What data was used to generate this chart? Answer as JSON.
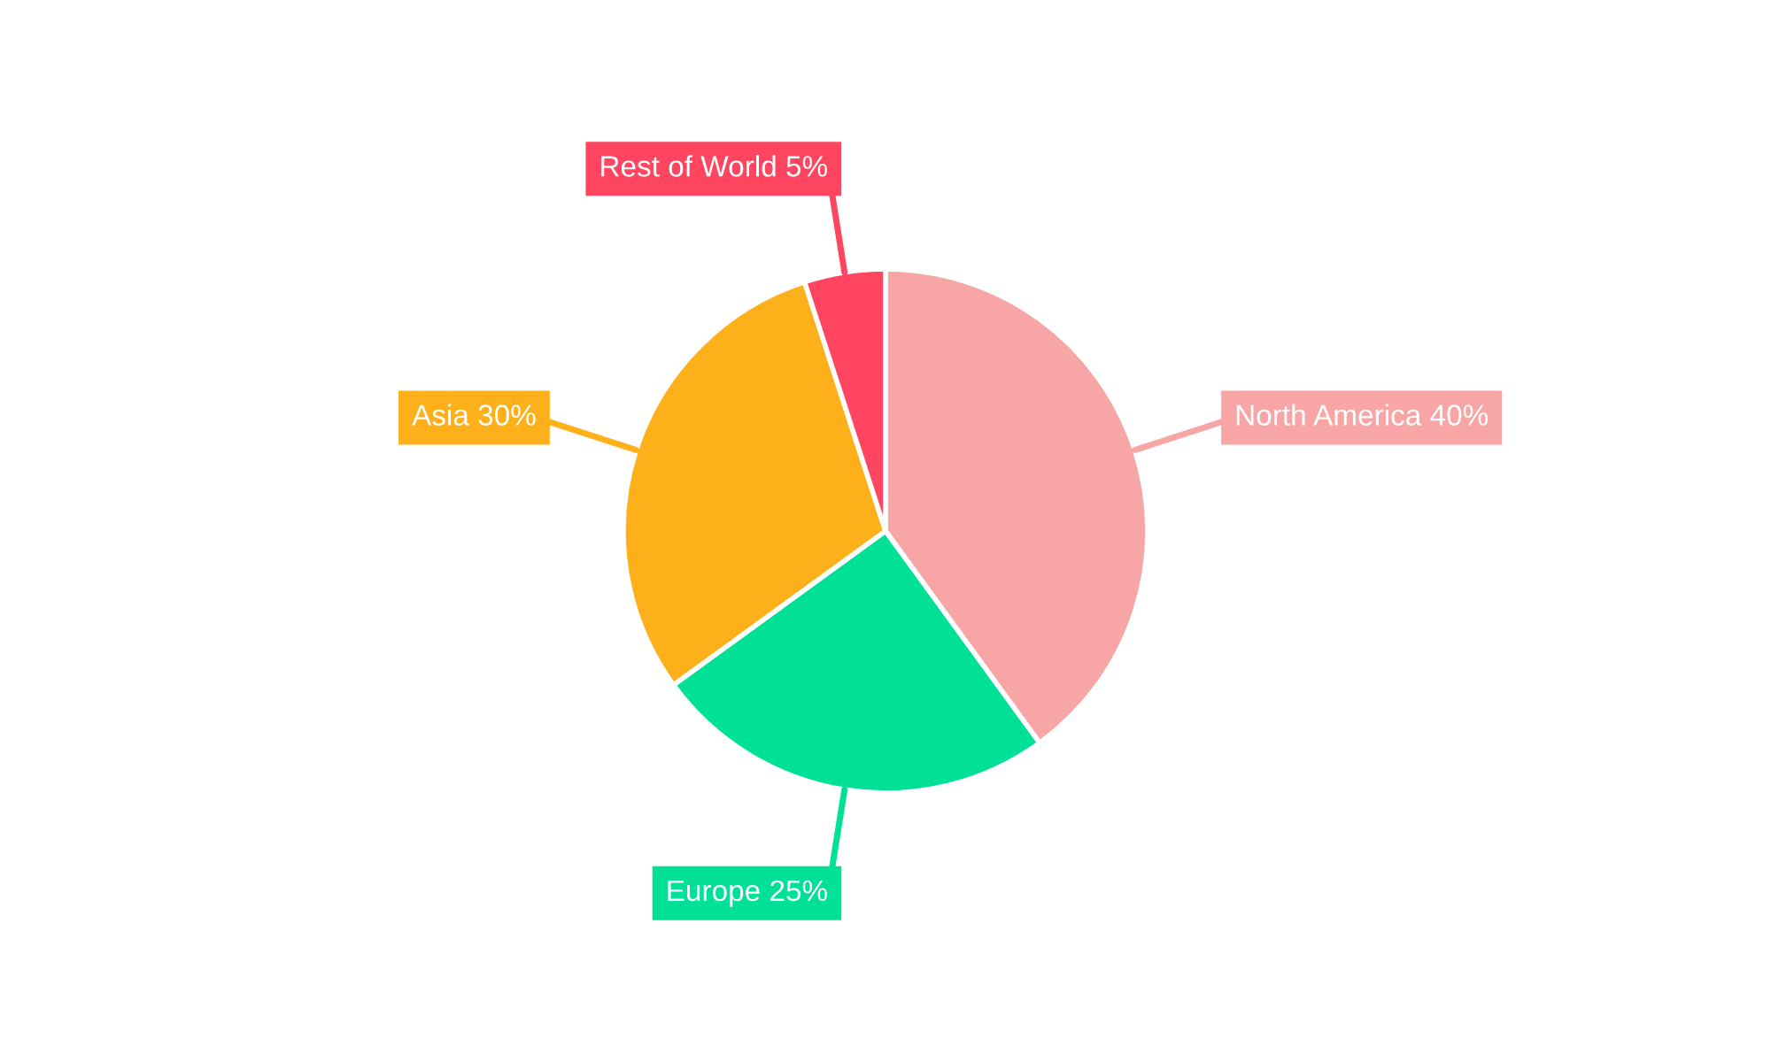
{
  "chart_data": {
    "type": "pie",
    "categories": [
      "North America",
      "Europe",
      "Asia",
      "Rest of World"
    ],
    "values": [
      40,
      25,
      30,
      5
    ],
    "value_labels": [
      "40%",
      "25%",
      "30%",
      "5%"
    ],
    "colors": [
      "#f8a5a5",
      "#00e096",
      "#feb01a",
      "#ff4560"
    ],
    "legend": false
  }
}
